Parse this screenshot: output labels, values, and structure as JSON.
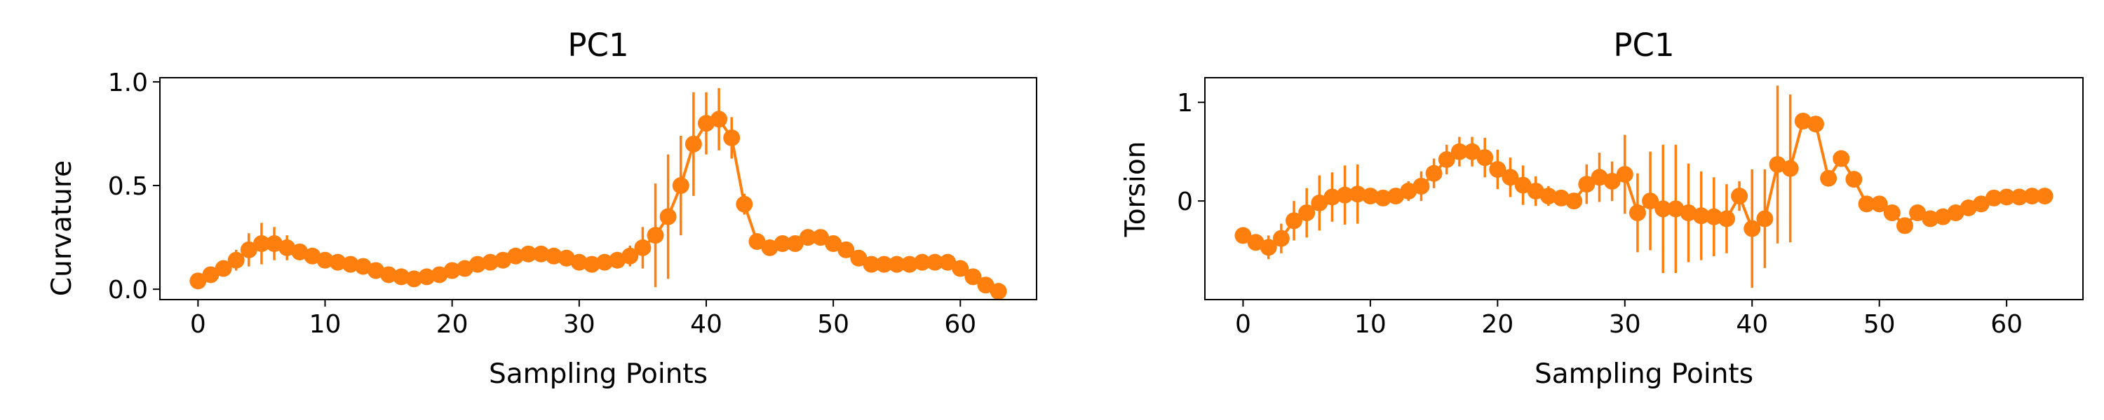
{
  "chart_data": [
    {
      "type": "line",
      "title": "PC1",
      "xlabel": "Sampling Points",
      "ylabel": "Curvature",
      "xlim": [
        -3,
        66
      ],
      "ylim": [
        -0.05,
        1.02
      ],
      "xticks": [
        0,
        10,
        20,
        30,
        40,
        50,
        60
      ],
      "yticks": [
        0.0,
        0.5,
        1.0
      ],
      "ytick_labels": [
        "0.0",
        "0.5",
        "1.0"
      ],
      "grid": false,
      "series": [
        {
          "color": "#ff7f0e",
          "x": [
            0,
            1,
            2,
            3,
            4,
            5,
            6,
            7,
            8,
            9,
            10,
            11,
            12,
            13,
            14,
            15,
            16,
            17,
            18,
            19,
            20,
            21,
            22,
            23,
            24,
            25,
            26,
            27,
            28,
            29,
            30,
            31,
            32,
            33,
            34,
            35,
            36,
            37,
            38,
            39,
            40,
            41,
            42,
            43,
            44,
            45,
            46,
            47,
            48,
            49,
            50,
            51,
            52,
            53,
            54,
            55,
            56,
            57,
            58,
            59,
            60,
            61,
            62,
            63
          ],
          "values": [
            0.04,
            0.07,
            0.1,
            0.14,
            0.19,
            0.22,
            0.22,
            0.2,
            0.18,
            0.16,
            0.14,
            0.13,
            0.12,
            0.11,
            0.09,
            0.07,
            0.06,
            0.05,
            0.06,
            0.07,
            0.09,
            0.1,
            0.12,
            0.13,
            0.14,
            0.16,
            0.17,
            0.17,
            0.16,
            0.15,
            0.13,
            0.12,
            0.13,
            0.14,
            0.16,
            0.2,
            0.26,
            0.35,
            0.5,
            0.7,
            0.8,
            0.82,
            0.73,
            0.41,
            0.23,
            0.2,
            0.22,
            0.22,
            0.25,
            0.25,
            0.22,
            0.19,
            0.15,
            0.12,
            0.12,
            0.12,
            0.12,
            0.13,
            0.13,
            0.13,
            0.1,
            0.06,
            0.02,
            -0.01
          ],
          "errors": [
            0.02,
            0.02,
            0.03,
            0.05,
            0.08,
            0.1,
            0.08,
            0.06,
            0.04,
            0.03,
            0.02,
            0.02,
            0.02,
            0.02,
            0.02,
            0.02,
            0.02,
            0.02,
            0.02,
            0.02,
            0.02,
            0.02,
            0.02,
            0.03,
            0.03,
            0.03,
            0.03,
            0.03,
            0.03,
            0.03,
            0.03,
            0.03,
            0.03,
            0.04,
            0.05,
            0.1,
            0.25,
            0.3,
            0.24,
            0.25,
            0.15,
            0.15,
            0.1,
            0.05,
            0.03,
            0.03,
            0.03,
            0.03,
            0.03,
            0.03,
            0.03,
            0.03,
            0.02,
            0.02,
            0.02,
            0.02,
            0.02,
            0.02,
            0.02,
            0.02,
            0.02,
            0.02,
            0.02,
            0.02
          ]
        }
      ]
    },
    {
      "type": "line",
      "title": "PC1",
      "xlabel": "Sampling Points",
      "ylabel": "Torsion",
      "xlim": [
        -3,
        66
      ],
      "ylim": [
        -1.0,
        1.25
      ],
      "xticks": [
        0,
        10,
        20,
        30,
        40,
        50,
        60
      ],
      "yticks": [
        0,
        1
      ],
      "ytick_labels": [
        "0",
        "1"
      ],
      "grid": false,
      "series": [
        {
          "color": "#ff7f0e",
          "x": [
            0,
            1,
            2,
            3,
            4,
            5,
            6,
            7,
            8,
            9,
            10,
            11,
            12,
            13,
            14,
            15,
            16,
            17,
            18,
            19,
            20,
            21,
            22,
            23,
            24,
            25,
            26,
            27,
            28,
            29,
            30,
            31,
            32,
            33,
            34,
            35,
            36,
            37,
            38,
            39,
            40,
            41,
            42,
            43,
            44,
            45,
            46,
            47,
            48,
            49,
            50,
            51,
            52,
            53,
            54,
            55,
            56,
            57,
            58,
            59,
            60,
            61,
            62,
            63
          ],
          "values": [
            -0.35,
            -0.42,
            -0.47,
            -0.38,
            -0.2,
            -0.12,
            -0.02,
            0.04,
            0.06,
            0.07,
            0.05,
            0.03,
            0.05,
            0.1,
            0.15,
            0.28,
            0.42,
            0.5,
            0.5,
            0.44,
            0.32,
            0.24,
            0.16,
            0.1,
            0.05,
            0.03,
            0.0,
            0.17,
            0.24,
            0.2,
            0.27,
            -0.12,
            0.0,
            -0.08,
            -0.08,
            -0.12,
            -0.15,
            -0.16,
            -0.18,
            0.05,
            -0.28,
            -0.18,
            0.37,
            0.33,
            0.81,
            0.78,
            0.23,
            0.43,
            0.22,
            -0.03,
            -0.03,
            -0.12,
            -0.25,
            -0.12,
            -0.18,
            -0.16,
            -0.12,
            -0.07,
            -0.03,
            0.03,
            0.04,
            0.04,
            0.05,
            0.05
          ],
          "errors": [
            0.04,
            0.06,
            0.12,
            0.15,
            0.2,
            0.25,
            0.28,
            0.25,
            0.3,
            0.3,
            0.05,
            0.06,
            0.08,
            0.1,
            0.15,
            0.15,
            0.15,
            0.15,
            0.15,
            0.2,
            0.2,
            0.2,
            0.2,
            0.15,
            0.1,
            0.08,
            0.05,
            0.2,
            0.25,
            0.2,
            0.4,
            0.4,
            0.5,
            0.65,
            0.65,
            0.5,
            0.45,
            0.4,
            0.35,
            0.15,
            0.6,
            0.5,
            0.8,
            0.75,
            0.05,
            0.05,
            0.05,
            0.05,
            0.05,
            0.05,
            0.05,
            0.05,
            0.05,
            0.05,
            0.05,
            0.05,
            0.05,
            0.05,
            0.05,
            0.05,
            0.05,
            0.05,
            0.05,
            0.05
          ]
        }
      ]
    }
  ]
}
